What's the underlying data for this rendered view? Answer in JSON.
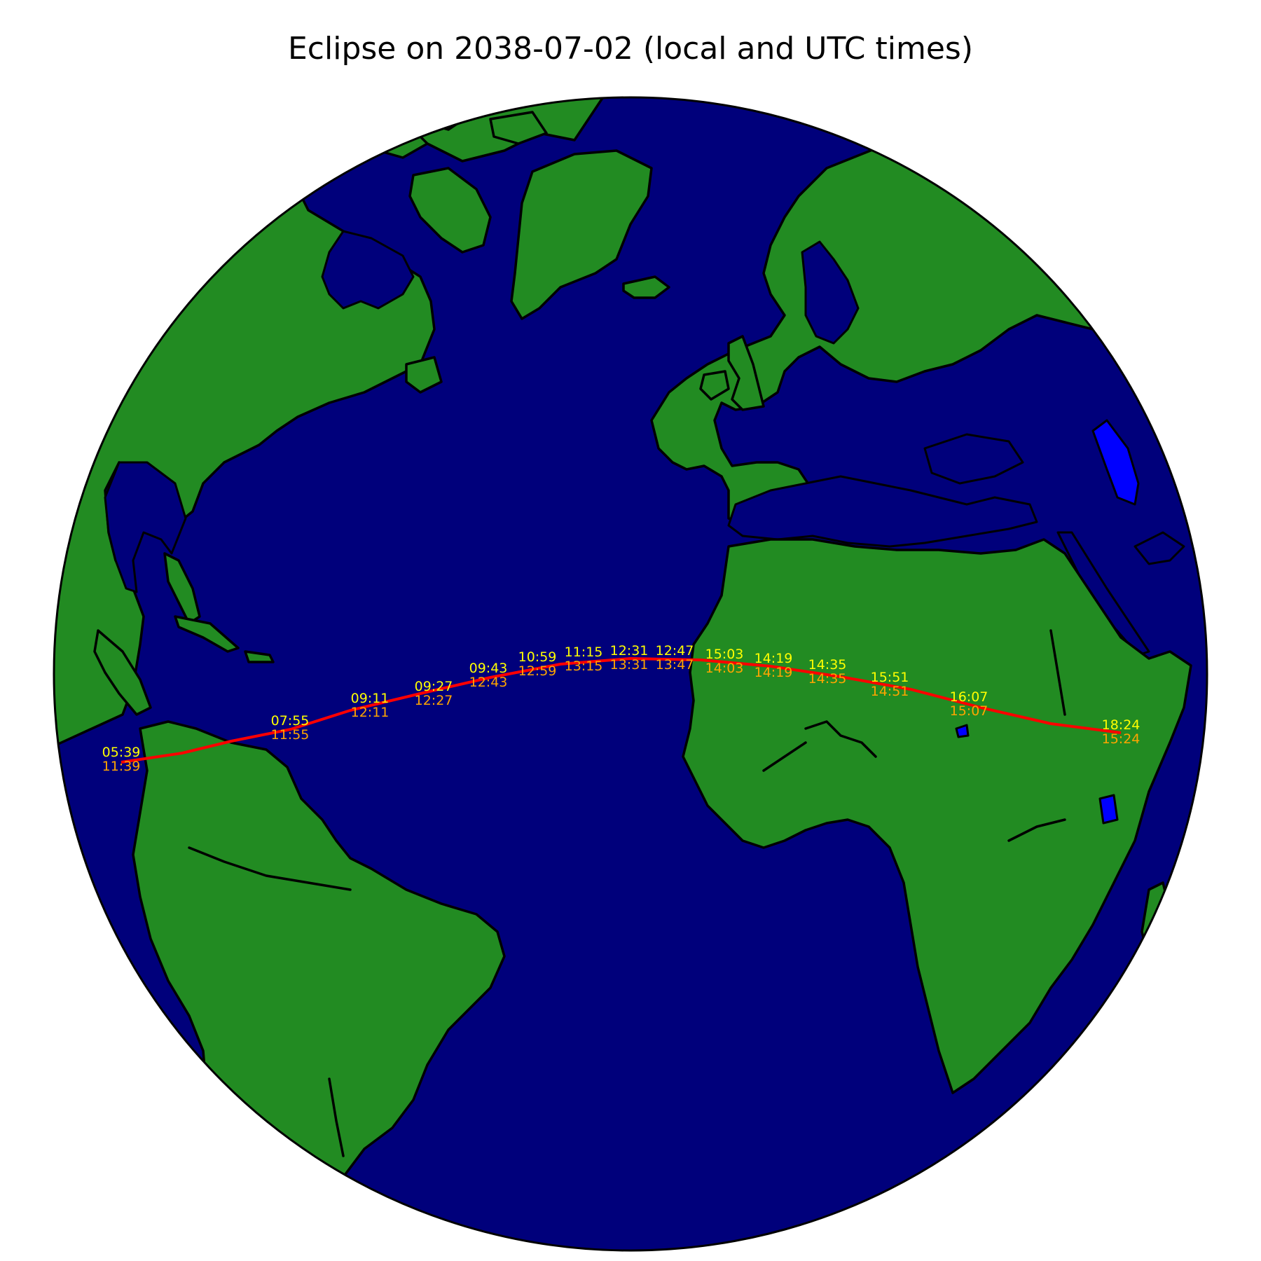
{
  "title": "Eclipse on 2038-07-02 (local and UTC times)",
  "colors": {
    "ocean": "#00007b",
    "land": "#228b22",
    "lakes": "#0000ff",
    "eclipse_path": "#ff0000",
    "local_time_label": "#ffff00",
    "utc_time_label": "#ffa500"
  },
  "eclipse_path": {
    "date": "2038-07-02",
    "points": [
      {
        "local": "05:39",
        "utc": "11:39"
      },
      {
        "local": "07:55",
        "utc": "11:55"
      },
      {
        "local": "09:11",
        "utc": "12:11"
      },
      {
        "local": "09:27",
        "utc": "12:27"
      },
      {
        "local": "09:43",
        "utc": "12:43"
      },
      {
        "local": "10:59",
        "utc": "12:59"
      },
      {
        "local": "11:15",
        "utc": "13:15"
      },
      {
        "local": "12:31",
        "utc": "13:31"
      },
      {
        "local": "12:47",
        "utc": "13:47"
      },
      {
        "local": "15:03",
        "utc": "14:03"
      },
      {
        "local": "14:19",
        "utc": "14:19"
      },
      {
        "local": "14:35",
        "utc": "14:35"
      },
      {
        "local": "15:51",
        "utc": "14:51"
      },
      {
        "local": "16:07",
        "utc": "15:07"
      },
      {
        "local": "18:24",
        "utc": "15:24"
      }
    ]
  }
}
